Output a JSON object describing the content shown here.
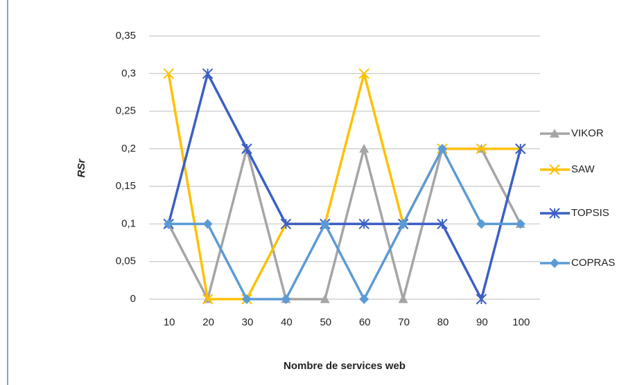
{
  "chart_data": {
    "type": "line",
    "x_label": "Nombre de services web",
    "y_label": "RSr",
    "categories": [
      "10",
      "20",
      "30",
      "40",
      "50",
      "60",
      "70",
      "80",
      "90",
      "100"
    ],
    "series": [
      {
        "name": "VIKOR",
        "color": "#a5a5a5",
        "marker": "triangle",
        "values": [
          0.1,
          0,
          0.2,
          0,
          0,
          0.2,
          0,
          0.2,
          0.2,
          0.1
        ]
      },
      {
        "name": "SAW",
        "color": "#ffc000",
        "marker": "x",
        "values": [
          0.3,
          0,
          0,
          0.1,
          0.1,
          0.3,
          0.1,
          0.2,
          0.2,
          0.2
        ]
      },
      {
        "name": "TOPSIS",
        "color": "#3b5fc4",
        "marker": "star",
        "values": [
          0.1,
          0.3,
          0.2,
          0.1,
          0.1,
          0.1,
          0.1,
          0.1,
          0,
          0.2
        ]
      },
      {
        "name": "COPRAS",
        "color": "#5b9bd5",
        "marker": "diamond",
        "values": [
          0.1,
          0.1,
          0,
          0,
          0.1,
          0,
          0.1,
          0.2,
          0.1,
          0.1
        ]
      }
    ],
    "ylim": [
      0,
      0.35
    ],
    "yticks": [
      0,
      {
        "value": 0.05,
        "label": "0,05"
      },
      {
        "value": 0.1,
        "label": "0,1"
      },
      {
        "value": 0.15,
        "label": "0,15"
      },
      {
        "value": 0.2,
        "label": "0,2"
      },
      {
        "value": 0.25,
        "label": "0,25"
      },
      {
        "value": 0.3,
        "label": "0,3"
      },
      {
        "value": 0.35,
        "label": "0,35"
      }
    ],
    "grid": true,
    "legend": "right"
  }
}
